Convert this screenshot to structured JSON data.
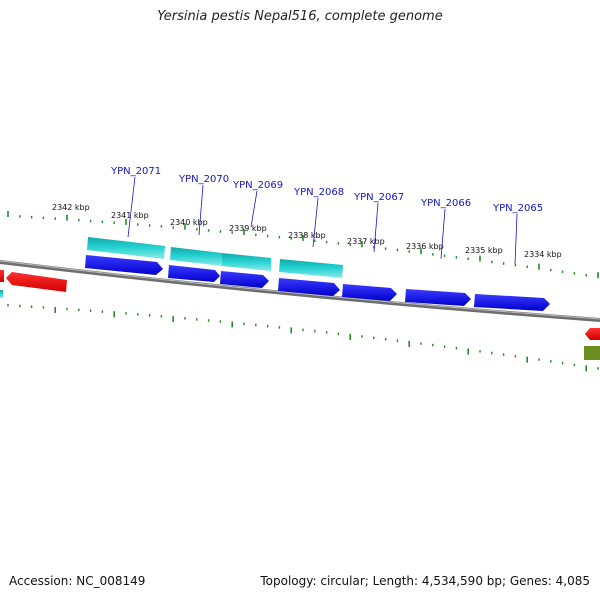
{
  "title": "Yersinia pestis Nepal516, complete genome",
  "footer": {
    "accession": "Accession: NC_008149",
    "summary": "Topology: circular; Length: 4,534,590 bp; Genes: 4,085"
  },
  "scale_labels": [
    "2342 kbp",
    "2341 kbp",
    "2340 kbp",
    "2339 kbp",
    "2338 kbp",
    "2337 kbp",
    "2336 kbp",
    "2335 kbp",
    "2334 kbp"
  ],
  "gene_labels": [
    "YPN_2071",
    "YPN_2070",
    "YPN_2069",
    "YPN_2068",
    "YPN_2067",
    "YPN_2066",
    "YPN_2065"
  ],
  "colors": {
    "forward_strand_gene": "#0000ee",
    "orf_track": "#1ec8c8",
    "reverse_gene": "#ee1111",
    "other_feature": "#6b8e23",
    "backbone": "#8a8a8a",
    "scale_ticks": "#228b22",
    "gene_label_text": "#1515c8"
  }
}
